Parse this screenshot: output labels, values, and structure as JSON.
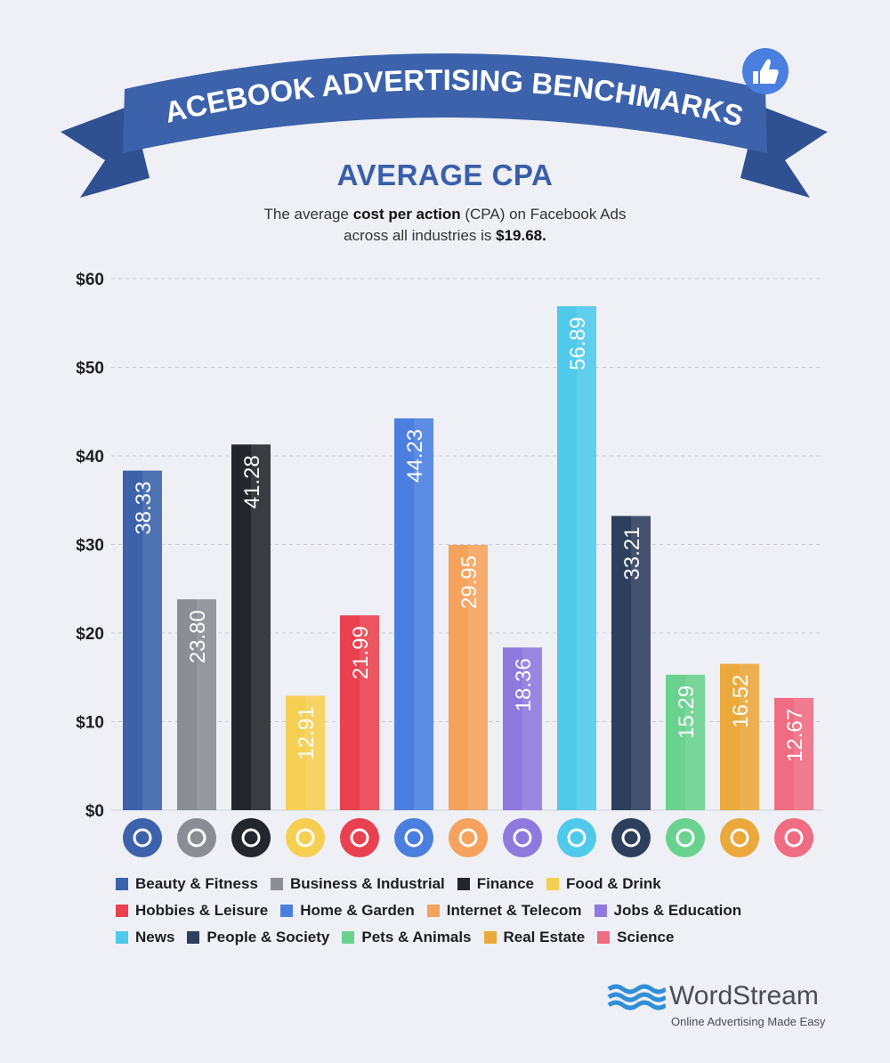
{
  "banner": {
    "title": "FACEBOOK ADVERTISING BENCHMARKS",
    "icon": "thumbs-up-icon",
    "color": "#3b62ab"
  },
  "header": {
    "subtitle": "AVERAGE CPA",
    "desc_1a": "The average ",
    "desc_1b": "cost per action",
    "desc_1c": " (CPA) on Facebook Ads",
    "desc_2a": "across all industries is ",
    "desc_2b": "$19.68."
  },
  "chart_data": {
    "type": "bar",
    "title": "AVERAGE CPA",
    "ylim": [
      0,
      60
    ],
    "yticks": [
      "$0",
      "$10",
      "$20",
      "$30",
      "$40",
      "$50",
      "$60"
    ],
    "ytick_values": [
      0,
      10,
      20,
      30,
      40,
      50,
      60
    ],
    "grid": true,
    "legend_position": "bottom",
    "categories": [
      "Beauty & Fitness",
      "Business & Industrial",
      "Finance",
      "Food & Drink",
      "Hobbies & Leisure",
      "Home & Garden",
      "Internet & Telecom",
      "Jobs & Education",
      "News",
      "People & Society",
      "Pets & Animals",
      "Real Estate",
      "Science"
    ],
    "values": [
      38.33,
      23.8,
      41.28,
      12.91,
      21.99,
      44.23,
      29.95,
      18.36,
      56.89,
      33.21,
      15.29,
      16.52,
      12.67
    ],
    "labels": [
      "38.33",
      "23.80",
      "41.28",
      "12.91",
      "21.99",
      "44.23",
      "29.95",
      "18.36",
      "56.89",
      "33.21",
      "15.29",
      "16.52",
      "12.67"
    ],
    "colors": [
      "#3b62ab",
      "#8a8d94",
      "#23262c",
      "#f5cf52",
      "#e9414f",
      "#4a7fe0",
      "#f5a35c",
      "#8e79df",
      "#4fcaeb",
      "#2e3f5e",
      "#6ad28f",
      "#eaa93a",
      "#f06c82"
    ],
    "icons": [
      "lipstick-icon",
      "factory-icon",
      "dollar-coin-icon",
      "fork-knife-icon",
      "puzzle-icon",
      "tulip-icon",
      "globe-icon",
      "briefcase-icon",
      "newspaper-icon",
      "people-icon",
      "paw-icon",
      "house-icon",
      "flask-icon"
    ]
  },
  "logo": {
    "name": "WordStream",
    "tagline": "Online Advertising Made Easy",
    "color": "#2f8fd8"
  }
}
